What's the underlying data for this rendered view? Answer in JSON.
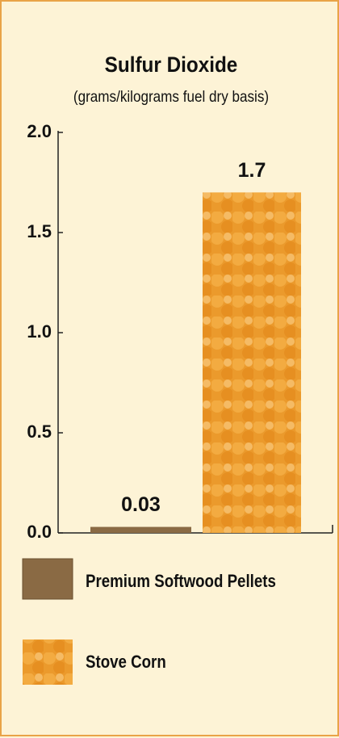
{
  "chart_data": {
    "type": "bar",
    "title": "Sulfur Dioxide",
    "subtitle": "(grams/kilograms fuel dry basis)",
    "categories": [
      null
    ],
    "series": [
      {
        "name": "Premium Softwood Pellets",
        "color": "#8a6a44",
        "values": [
          0.03
        ]
      },
      {
        "name": "Stove Corn",
        "color": "#eb9a2c",
        "values": [
          1.7
        ]
      }
    ],
    "ylim": [
      0,
      2
    ],
    "yticks": [
      {
        "value": 0,
        "label": "0.0"
      },
      0.5,
      {
        "value": 1,
        "label": "1.0"
      },
      1.5,
      {
        "value": 2,
        "label": "2.0"
      }
    ]
  }
}
